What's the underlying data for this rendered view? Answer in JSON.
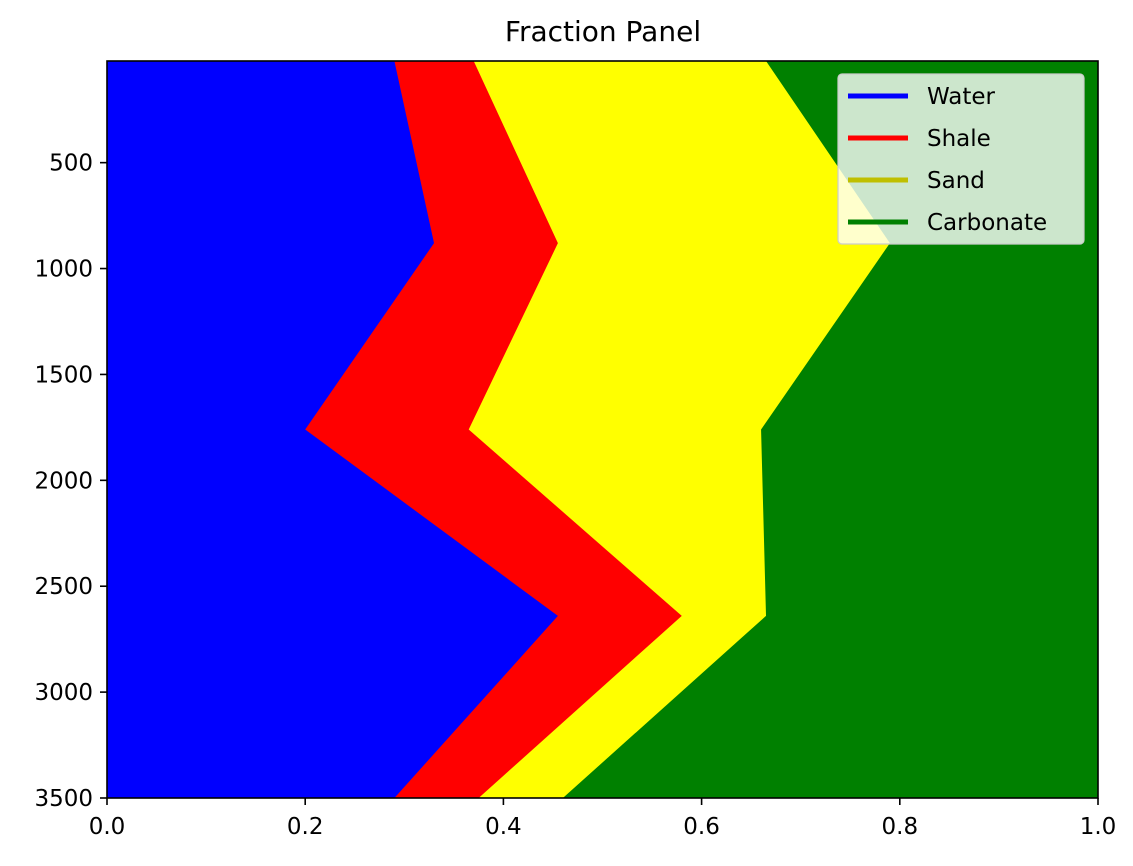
{
  "chart_data": {
    "type": "area",
    "title": "Fraction Panel",
    "xlabel": "",
    "ylabel": "",
    "xlim": [
      0.0,
      1.0
    ],
    "ylim": [
      3500,
      0
    ],
    "y_inverted": true,
    "y_visible_top": 20,
    "xticks": [
      0.0,
      0.2,
      0.4,
      0.6,
      0.8,
      1.0
    ],
    "xtick_labels": [
      "0.0",
      "0.2",
      "0.4",
      "0.6",
      "0.8",
      "1.0"
    ],
    "yticks": [
      500,
      1000,
      1500,
      2000,
      2500,
      3000,
      3500
    ],
    "ytick_labels": [
      "500",
      "1000",
      "1500",
      "2000",
      "2500",
      "3000",
      "3500"
    ],
    "depth": [
      20,
      880,
      1760,
      2640,
      3500
    ],
    "series": [
      {
        "name": "Water",
        "color": "#0000ff",
        "cumulative_right_edge": [
          0.29,
          0.33,
          0.2,
          0.455,
          0.29
        ]
      },
      {
        "name": "Shale",
        "color": "#ff0000",
        "cumulative_right_edge": [
          0.37,
          0.455,
          0.365,
          0.58,
          0.375
        ]
      },
      {
        "name": "Sand",
        "color": "#ffff00",
        "legend_color": "#bfbf00",
        "cumulative_right_edge": [
          0.665,
          0.79,
          0.66,
          0.665,
          0.46
        ]
      },
      {
        "name": "Carbonate",
        "color": "#008000",
        "cumulative_right_edge": [
          1.0,
          1.0,
          1.0,
          1.0,
          1.0
        ]
      }
    ],
    "grid": false,
    "legend_position": "upper-right"
  }
}
